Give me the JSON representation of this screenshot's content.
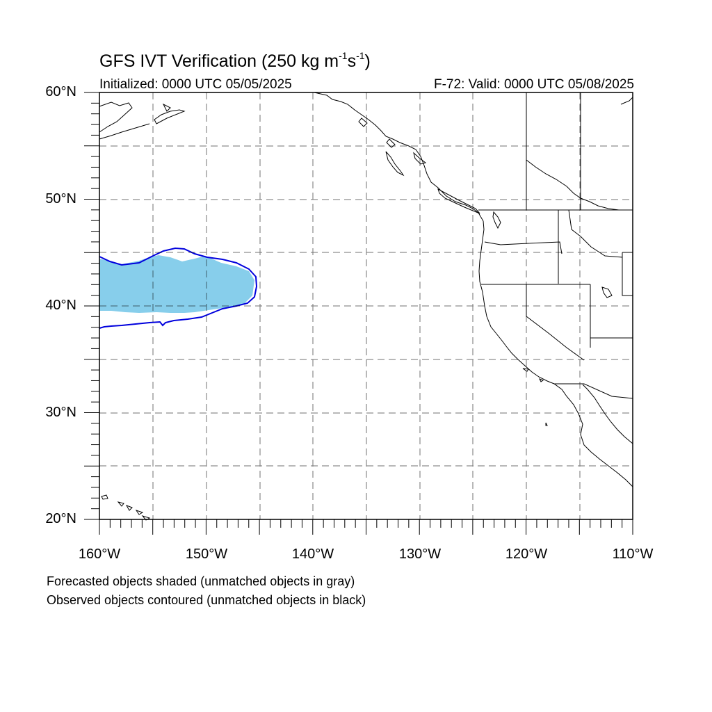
{
  "map": {
    "title_main": "GFS IVT Verification (250 kg m",
    "title_exp1": "-1",
    "title_mid": "s",
    "title_exp2": "-1",
    "title_end": ")",
    "initialized": "Initialized: 0000 UTC 05/05/2025",
    "valid": "F-72: Valid: 0000 UTC 05/08/2025",
    "lat_labels": [
      "60°N",
      "50°N",
      "40°N",
      "30°N",
      "20°N"
    ],
    "lon_labels": [
      "160°W",
      "150°W",
      "140°W",
      "130°W",
      "120°W",
      "110°W"
    ],
    "extent": {
      "lon_min": -160,
      "lon_max": -110,
      "lat_min": 20,
      "lat_max": 60
    },
    "notes": {
      "forecast": "Forecasted objects shaded (unmatched objects in gray)",
      "observed": "Observed objects contoured (unmatched objects in black)"
    },
    "colors": {
      "forecast_fill": "#87ceeb",
      "observed_contour": "#0000dd",
      "coastline": "#000000",
      "grid": "#000000"
    }
  }
}
